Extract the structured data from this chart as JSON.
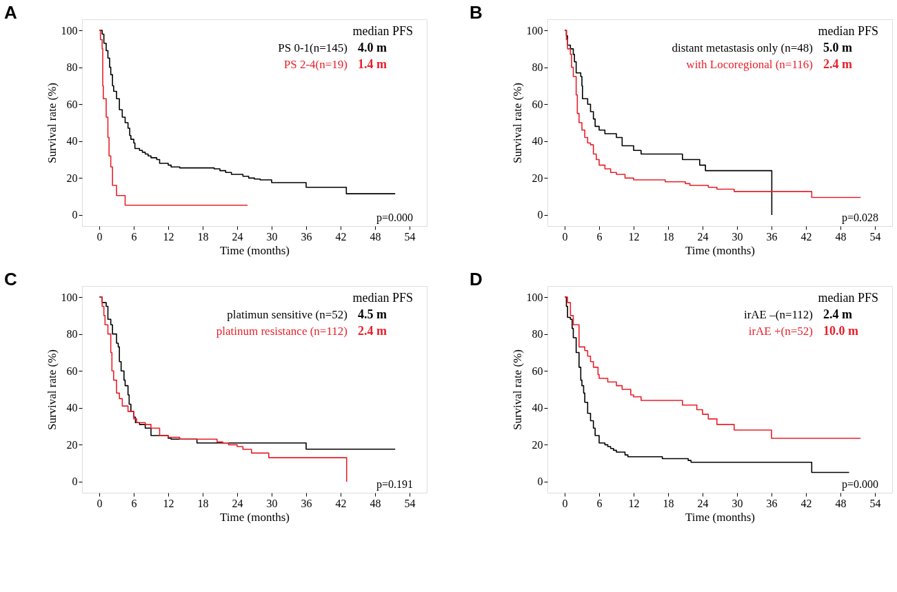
{
  "chart_data": [
    {
      "type": "step",
      "title": "A",
      "xlabel": "Time (months)",
      "ylabel": "Survival rate (%)",
      "legend_title": "median  PFS",
      "legend": "top right",
      "grid": false,
      "xlim": [
        -3,
        57
      ],
      "xticks": [
        0,
        6,
        12,
        18,
        24,
        30,
        36,
        42,
        48,
        54
      ],
      "ylim": [
        -6,
        106
      ],
      "yticks": [
        0,
        20,
        40,
        60,
        80,
        100
      ],
      "annotations": [
        "4.0 m",
        "1.4 m",
        "p=0.000"
      ],
      "series": [
        {
          "name": "PS 0-1(n=145)",
          "color": "#000000",
          "x": [
            0,
            0.5,
            0.8,
            1.2,
            1.5,
            1.8,
            2.0,
            2.3,
            2.5,
            3.0,
            3.5,
            4.0,
            4.5,
            5.0,
            5.3,
            5.5,
            6.0,
            6.2,
            7,
            7.5,
            8,
            8.5,
            9,
            10,
            10.5,
            12,
            12.5,
            14,
            20,
            21,
            22,
            23,
            25,
            26,
            27,
            28,
            30,
            36,
            43,
            51.5
          ],
          "values": [
            100,
            98,
            93,
            89,
            85,
            80,
            76,
            70,
            67,
            63,
            57,
            53,
            50,
            47,
            43,
            41,
            39,
            36,
            35,
            34,
            33,
            32,
            31,
            30,
            28,
            27,
            26,
            25.5,
            25,
            24,
            23,
            22,
            21,
            20,
            19.5,
            19,
            17.5,
            15,
            11.5,
            11.5
          ]
        },
        {
          "name": "PS 2-4(n=19)",
          "color": "#e8202a",
          "x": [
            0,
            0.2,
            0.5,
            0.6,
            0.7,
            1.2,
            1.5,
            1.7,
            2.0,
            2.3,
            3.0,
            4.5,
            25.8
          ],
          "values": [
            100,
            95,
            90,
            70,
            63,
            53,
            42,
            32,
            26,
            16,
            10.5,
            5.3,
            5.3
          ]
        }
      ]
    },
    {
      "type": "step",
      "title": "B",
      "xlabel": "Time (months)",
      "ylabel": "Survival rate (%)",
      "legend_title": "median  PFS",
      "legend": "top right",
      "grid": false,
      "xlim": [
        -3,
        57
      ],
      "xticks": [
        0,
        6,
        12,
        18,
        24,
        30,
        36,
        42,
        48,
        54
      ],
      "ylim": [
        -6,
        106
      ],
      "yticks": [
        0,
        20,
        40,
        60,
        80,
        100
      ],
      "annotations": [
        "5.0 m",
        "2.4 m",
        "p=0.028"
      ],
      "series": [
        {
          "name": "distant metastasis only (n=48)",
          "color": "#000000",
          "x": [
            0,
            0.3,
            0.5,
            1.0,
            1.5,
            1.7,
            2.0,
            2.8,
            3.0,
            3.1,
            4.0,
            4.5,
            5.0,
            5.3,
            6.0,
            7.0,
            9.0,
            10.0,
            12.0,
            13.3,
            20.5,
            23.5,
            24.5,
            36.0,
            36.05
          ],
          "values": [
            100,
            97,
            92,
            90,
            87,
            83,
            77,
            75,
            70,
            63,
            60,
            56,
            52,
            48,
            46,
            44,
            42,
            37.5,
            35,
            33,
            30,
            27,
            24,
            24,
            0
          ]
        },
        {
          "name": "with Locoregional (n=116)",
          "color": "#e8202a",
          "x": [
            0,
            0.3,
            0.5,
            1.0,
            1.2,
            1.5,
            2.0,
            2.2,
            2.5,
            3.0,
            3.5,
            4.0,
            4.5,
            5.0,
            5.5,
            6.0,
            7.0,
            8.0,
            9.0,
            10.5,
            12.0,
            17.5,
            21,
            21.8,
            25.0,
            26.5,
            29.5,
            43.0,
            51.5
          ],
          "values": [
            100,
            95,
            90,
            87,
            80,
            75,
            65,
            55,
            50,
            46,
            42,
            39,
            38,
            33,
            30,
            27,
            25,
            23,
            22,
            20,
            19,
            18,
            17,
            16,
            15,
            14,
            12.7,
            9.5,
            9.5
          ]
        }
      ]
    },
    {
      "type": "step",
      "title": "C",
      "xlabel": "Time (months)",
      "ylabel": "Survival rate (%)",
      "legend_title": "median  PFS",
      "legend": "top right",
      "grid": false,
      "xlim": [
        -3,
        57
      ],
      "xticks": [
        0,
        6,
        12,
        18,
        24,
        30,
        36,
        42,
        48,
        54
      ],
      "ylim": [
        -6,
        106
      ],
      "yticks": [
        0,
        20,
        40,
        60,
        80,
        100
      ],
      "annotations": [
        "4.5 m",
        "2.4 m",
        "p=0.191"
      ],
      "series": [
        {
          "name": "platimun sensitive (n=52)",
          "color": "#000000",
          "x": [
            0,
            0.5,
            1.2,
            1.5,
            2.0,
            2.3,
            3.0,
            3.3,
            3.5,
            3.8,
            4.3,
            4.5,
            5.0,
            5.2,
            5.5,
            6.0,
            6.3,
            7.0,
            8.0,
            9.0,
            12.0,
            12.5,
            17.0,
            36.0,
            51.5
          ],
          "values": [
            100,
            97,
            95,
            88,
            85,
            80,
            75,
            73,
            65,
            60,
            55,
            52,
            47,
            42,
            38,
            35,
            32,
            31,
            29,
            25,
            23.5,
            23,
            21,
            17.6,
            17.6
          ]
        },
        {
          "name": "platinum resistance (n=112)",
          "color": "#e8202a",
          "x": [
            0,
            0.5,
            0.8,
            1.0,
            1.5,
            2.0,
            2.2,
            2.5,
            3.0,
            3.5,
            4.0,
            5.0,
            6.0,
            6.5,
            8.0,
            9.0,
            10.5,
            12.0,
            14.0,
            20.5,
            21.5,
            22.5,
            24.0,
            25.0,
            26.5,
            29.5,
            43.0,
            43.05
          ],
          "values": [
            100,
            95,
            90,
            85,
            80,
            70,
            60,
            55,
            48,
            45,
            41,
            38,
            34,
            32,
            31,
            29,
            25,
            24,
            23,
            21.5,
            21,
            20,
            19,
            17.5,
            15.5,
            13,
            13,
            0
          ]
        }
      ]
    },
    {
      "type": "step",
      "title": "D",
      "xlabel": "Time (months)",
      "ylabel": "Survival rate (%)",
      "legend_title": "median  PFS",
      "legend": "top right",
      "grid": false,
      "xlim": [
        -3,
        57
      ],
      "xticks": [
        0,
        6,
        12,
        18,
        24,
        30,
        36,
        42,
        48,
        54
      ],
      "ylim": [
        -6,
        106
      ],
      "yticks": [
        0,
        20,
        40,
        60,
        80,
        100
      ],
      "annotations": [
        "2.4 m",
        "10.0 m",
        "p=0.000"
      ],
      "series": [
        {
          "name": "irAE –(n=112)",
          "color": "#000000",
          "x": [
            0,
            0.3,
            0.5,
            1.0,
            1.3,
            1.5,
            2.0,
            2.5,
            2.8,
            3.0,
            3.3,
            3.5,
            4.0,
            4.5,
            5.0,
            5.3,
            6.0,
            7.0,
            7.5,
            8.0,
            8.5,
            9.0,
            10.5,
            11.0,
            17.0,
            21.5,
            22.0,
            43.0,
            49.5
          ],
          "values": [
            100,
            95,
            89,
            88,
            83,
            78,
            70,
            62,
            55,
            52,
            48,
            43,
            37,
            33,
            29,
            25,
            21,
            20,
            19,
            18,
            17,
            16,
            14.5,
            13.5,
            12.5,
            11.5,
            10.5,
            5,
            5
          ]
        },
        {
          "name": "irAE +(n=52)",
          "color": "#e8202a",
          "x": [
            0,
            0.5,
            1.0,
            1.5,
            2.5,
            3.5,
            4.0,
            4.5,
            5.0,
            5.8,
            6.0,
            7.5,
            9.0,
            10.0,
            11.5,
            12.0,
            13.3,
            20.5,
            23.0,
            24.0,
            25.0,
            26.5,
            29.5,
            36.0,
            51.5
          ],
          "values": [
            100,
            97,
            90,
            85,
            73,
            71,
            68,
            65,
            62,
            58,
            56,
            54,
            52,
            50,
            47,
            46,
            44,
            41.5,
            39,
            36.5,
            34,
            31,
            28,
            23.5,
            23.5
          ]
        }
      ]
    }
  ]
}
